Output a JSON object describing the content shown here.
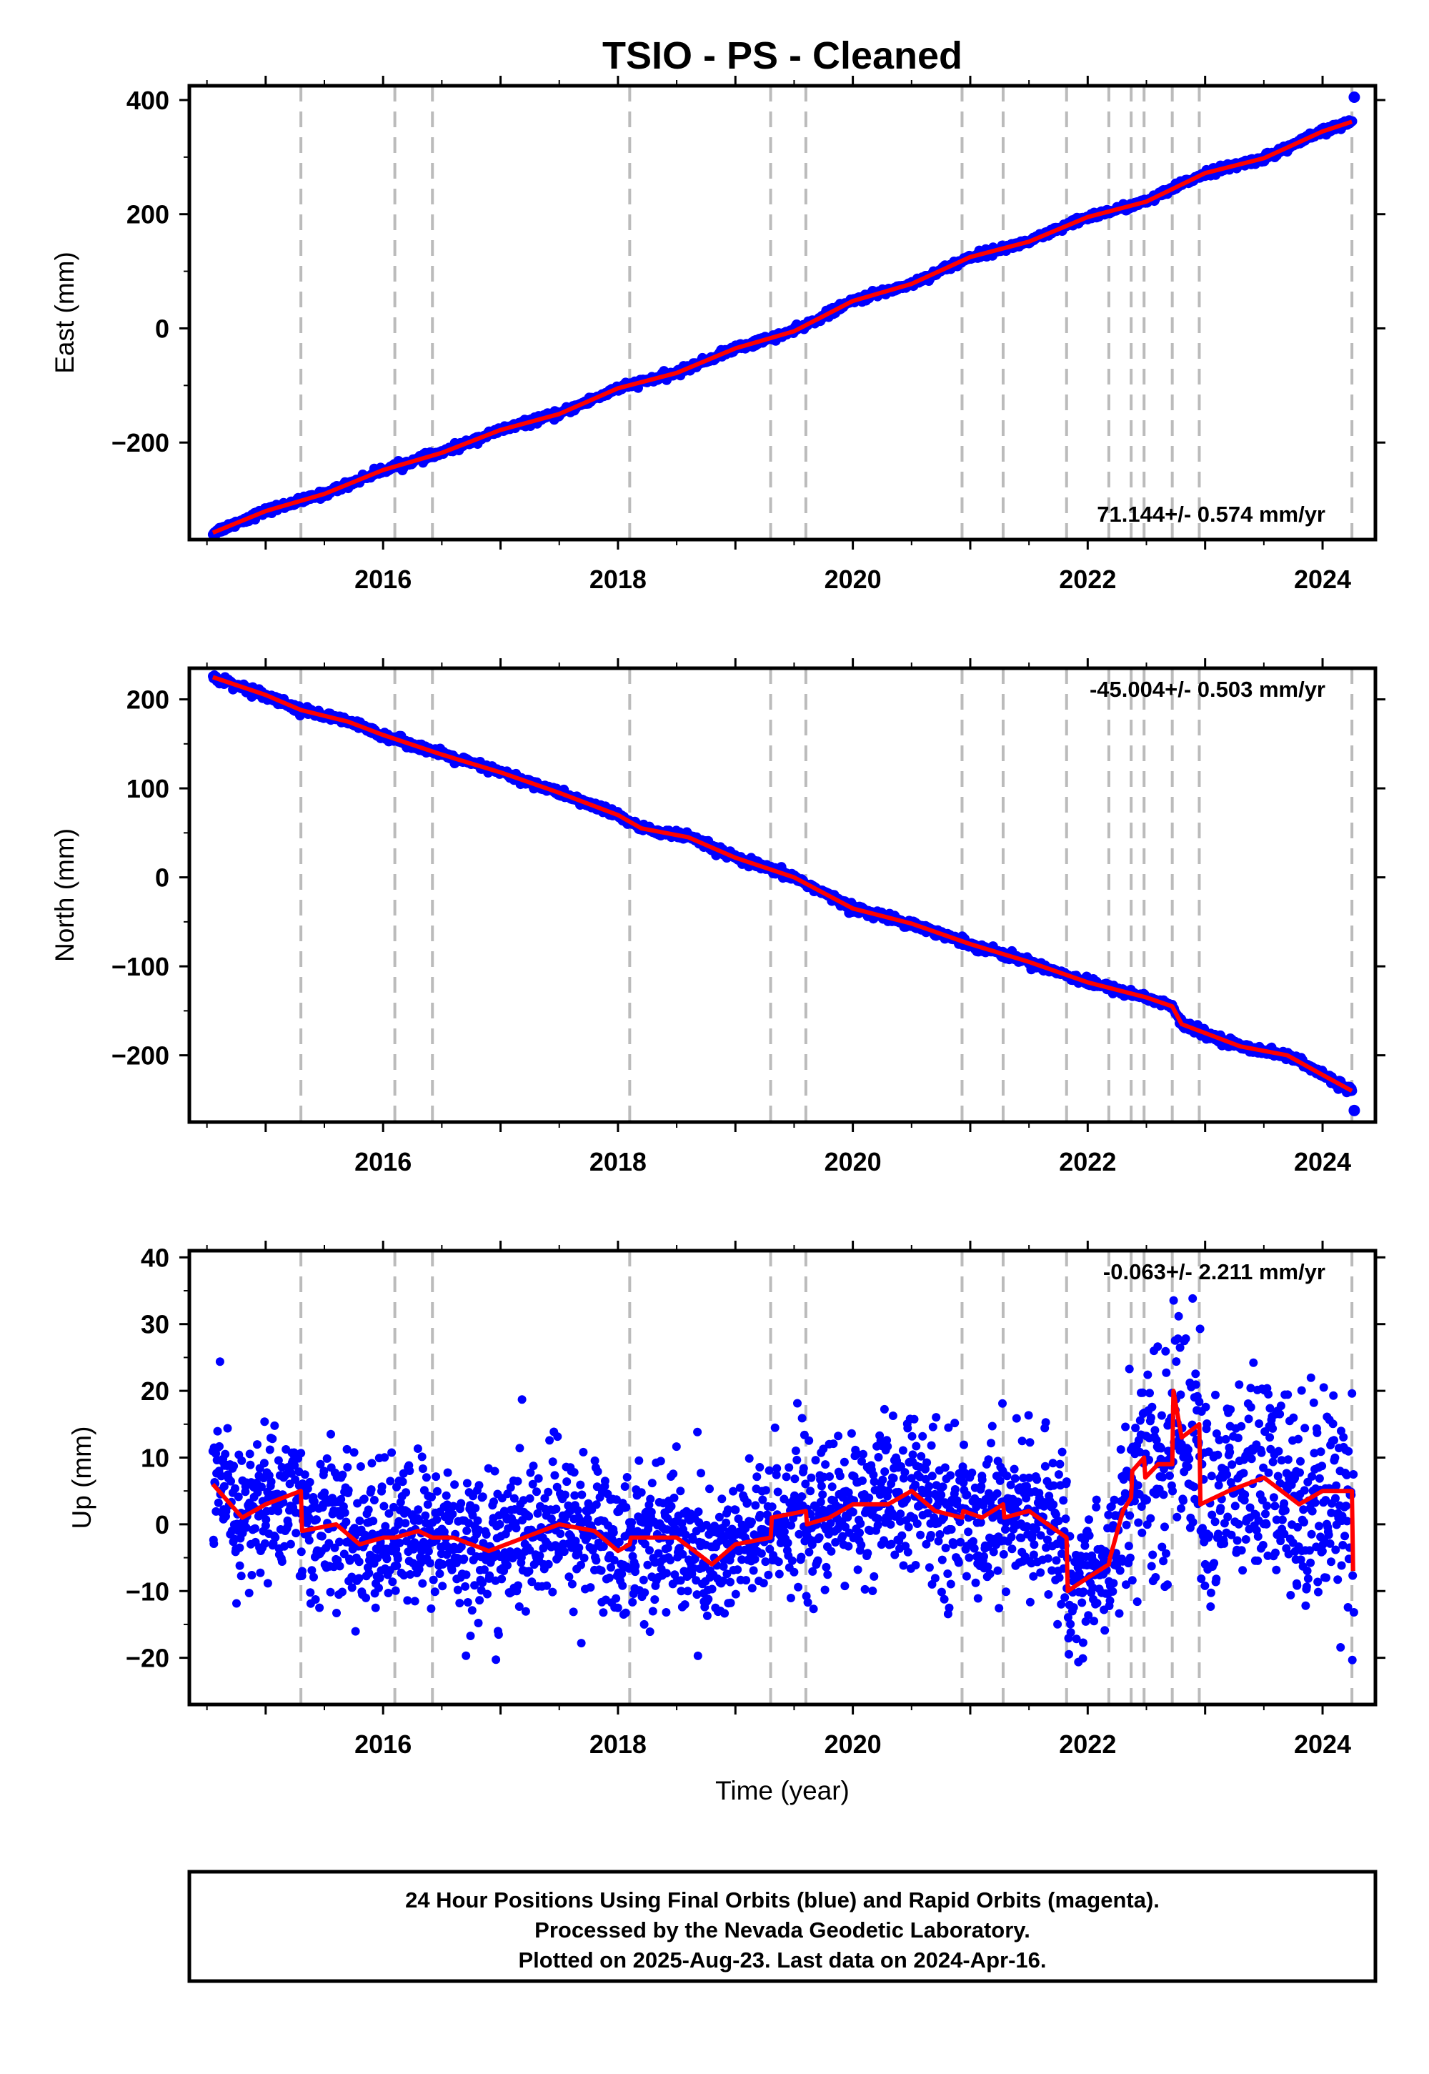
{
  "title": "TSIO  - PS - Cleaned",
  "colors": {
    "data": "#0000ff",
    "model": "#ff0000",
    "breaks": "#bbbbbb"
  },
  "chart_data": [
    {
      "type": "scatter",
      "component": "east",
      "ylabel": "East (mm)",
      "xlabel": "",
      "xlim": [
        2014.35,
        2024.45
      ],
      "ylim": [
        -370,
        425
      ],
      "yticks": [
        -200,
        0,
        200,
        400
      ],
      "xticks": [
        2016,
        2018,
        2020,
        2022,
        2024
      ],
      "rate_text": "71.144+/- 0.574 mm/yr",
      "rate_position": "bottom-right",
      "breaks": [
        2015.3,
        2016.1,
        2016.42,
        2018.1,
        2019.3,
        2019.6,
        2020.93,
        2021.28,
        2021.82,
        2022.18,
        2022.37,
        2022.48,
        2022.72,
        2022.95,
        2024.25
      ],
      "series": [
        {
          "x": [
            2014.55,
            2015.0,
            2015.5,
            2016.0,
            2016.5,
            2017.0,
            2017.5,
            2018.0,
            2018.5,
            2019.0,
            2019.5,
            2020.0,
            2020.5,
            2021.0,
            2021.5,
            2022.0,
            2022.5,
            2023.0,
            2023.5,
            2024.0,
            2024.25
          ],
          "y": [
            -358,
            -320,
            -290,
            -248,
            -218,
            -178,
            -150,
            -105,
            -78,
            -35,
            -5,
            48,
            78,
            125,
            152,
            195,
            222,
            272,
            298,
            345,
            362
          ]
        }
      ]
    },
    {
      "type": "scatter",
      "component": "north",
      "ylabel": "North (mm)",
      "xlabel": "",
      "xlim": [
        2014.35,
        2024.45
      ],
      "ylim": [
        -275,
        235
      ],
      "yticks": [
        -200,
        -100,
        0,
        100,
        200
      ],
      "xticks": [
        2016,
        2018,
        2020,
        2022,
        2024
      ],
      "rate_text": "-45.004+/- 0.503 mm/yr",
      "rate_position": "top-right",
      "breaks": [
        2015.3,
        2016.1,
        2016.42,
        2018.1,
        2019.3,
        2019.6,
        2020.93,
        2021.28,
        2021.82,
        2022.18,
        2022.37,
        2022.48,
        2022.72,
        2022.95,
        2024.25
      ],
      "series": [
        {
          "x": [
            2014.55,
            2015.0,
            2015.3,
            2015.7,
            2016.0,
            2016.5,
            2017.0,
            2017.5,
            2018.0,
            2018.2,
            2018.6,
            2019.0,
            2019.5,
            2020.0,
            2020.5,
            2021.0,
            2021.5,
            2022.0,
            2022.5,
            2022.72,
            2022.8,
            2023.3,
            2023.7,
            2024.0,
            2024.25
          ],
          "y": [
            225,
            205,
            188,
            175,
            160,
            138,
            118,
            95,
            70,
            55,
            45,
            22,
            0,
            -35,
            -52,
            -75,
            -95,
            -118,
            -135,
            -145,
            -165,
            -190,
            -200,
            -222,
            -240
          ]
        }
      ]
    },
    {
      "type": "scatter",
      "component": "up",
      "ylabel": "Up (mm)",
      "xlabel": "Time (year)",
      "xlim": [
        2014.35,
        2024.45
      ],
      "ylim": [
        -27,
        41
      ],
      "yticks": [
        -20,
        -10,
        0,
        10,
        20,
        30,
        40
      ],
      "xticks": [
        2016,
        2018,
        2020,
        2022,
        2024
      ],
      "rate_text": "-0.063+/- 2.211 mm/yr",
      "rate_position": "top-right",
      "breaks": [
        2015.3,
        2016.1,
        2016.42,
        2018.1,
        2019.3,
        2019.6,
        2020.93,
        2021.28,
        2021.82,
        2022.18,
        2022.37,
        2022.48,
        2022.72,
        2022.95,
        2024.25
      ],
      "series": [
        {
          "x": [
            2014.55,
            2014.8,
            2015.0,
            2015.3,
            2015.31,
            2015.6,
            2015.8,
            2016.0,
            2016.1,
            2016.3,
            2016.42,
            2016.6,
            2016.9,
            2017.2,
            2017.5,
            2017.8,
            2018.0,
            2018.1,
            2018.11,
            2018.3,
            2018.5,
            2018.8,
            2019.0,
            2019.3,
            2019.31,
            2019.6,
            2019.61,
            2019.8,
            2020.0,
            2020.3,
            2020.5,
            2020.7,
            2020.93,
            2020.94,
            2021.1,
            2021.28,
            2021.29,
            2021.5,
            2021.82,
            2021.83,
            2022.0,
            2022.18,
            2022.19,
            2022.3,
            2022.37,
            2022.38,
            2022.48,
            2022.49,
            2022.6,
            2022.72,
            2022.73,
            2022.8,
            2022.95,
            2022.96,
            2023.2,
            2023.5,
            2023.8,
            2024.0,
            2024.25,
            2024.26
          ],
          "y": [
            6,
            1,
            3,
            5,
            -1,
            0,
            -3,
            -2,
            -2,
            -1,
            -2,
            -2,
            -4,
            -2,
            0,
            -1,
            -4,
            -3,
            -2,
            -2,
            -2,
            -6,
            -3,
            -2,
            1,
            2,
            0,
            1,
            3,
            3,
            5,
            2,
            1,
            2,
            1,
            3,
            1,
            2,
            -2,
            -10,
            -8,
            -6,
            -5,
            2,
            4,
            8,
            10,
            7,
            9,
            9,
            20,
            13,
            15,
            3,
            5,
            7,
            3,
            5,
            5,
            -7
          ]
        }
      ]
    }
  ],
  "footer": {
    "line1": "24 Hour Positions Using Final Orbits (blue) and Rapid Orbits (magenta).",
    "line2": "Processed by the Nevada Geodetic Laboratory.",
    "line3": "Plotted on 2025-Aug-23. Last data on 2024-Apr-16."
  }
}
